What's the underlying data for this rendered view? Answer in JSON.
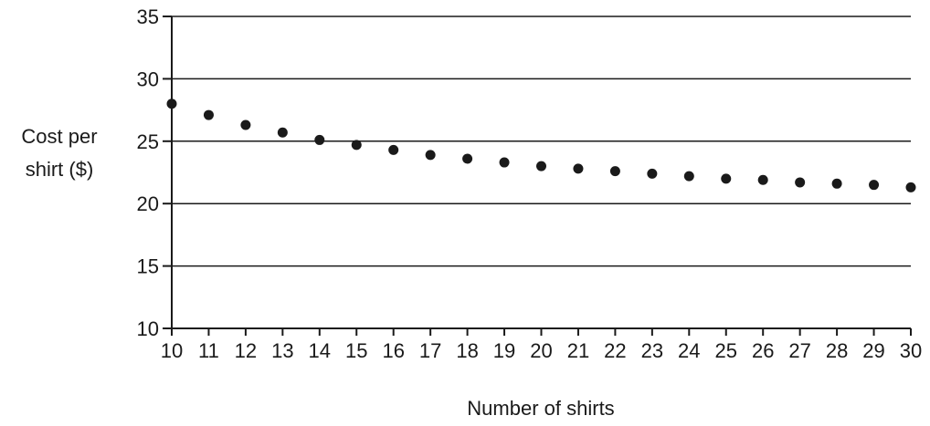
{
  "chart_data": {
    "type": "scatter",
    "title": "",
    "xlabel": "Number of shirts",
    "ylabel_lines": [
      "Cost per",
      "shirt ($)"
    ],
    "xlim": [
      10,
      30
    ],
    "ylim": [
      10,
      35
    ],
    "x_ticks": [
      10,
      11,
      12,
      13,
      14,
      15,
      16,
      17,
      18,
      19,
      20,
      21,
      22,
      23,
      24,
      25,
      26,
      27,
      28,
      29,
      30
    ],
    "y_ticks": [
      10,
      15,
      20,
      25,
      30,
      35
    ],
    "grid": "horizontal",
    "legend": "none",
    "series": [
      {
        "x": [
          10,
          11,
          12,
          13,
          14,
          15,
          16,
          17,
          18,
          19,
          20,
          21,
          22,
          23,
          24,
          25,
          26,
          27,
          28,
          29,
          30
        ],
        "y": [
          28.0,
          27.1,
          26.3,
          25.7,
          25.1,
          24.7,
          24.3,
          23.9,
          23.6,
          23.3,
          23.0,
          22.8,
          22.6,
          22.4,
          22.2,
          22.0,
          21.9,
          21.7,
          21.6,
          21.5,
          21.3
        ]
      }
    ],
    "colors": {
      "ink": "#1a1a1a"
    }
  }
}
